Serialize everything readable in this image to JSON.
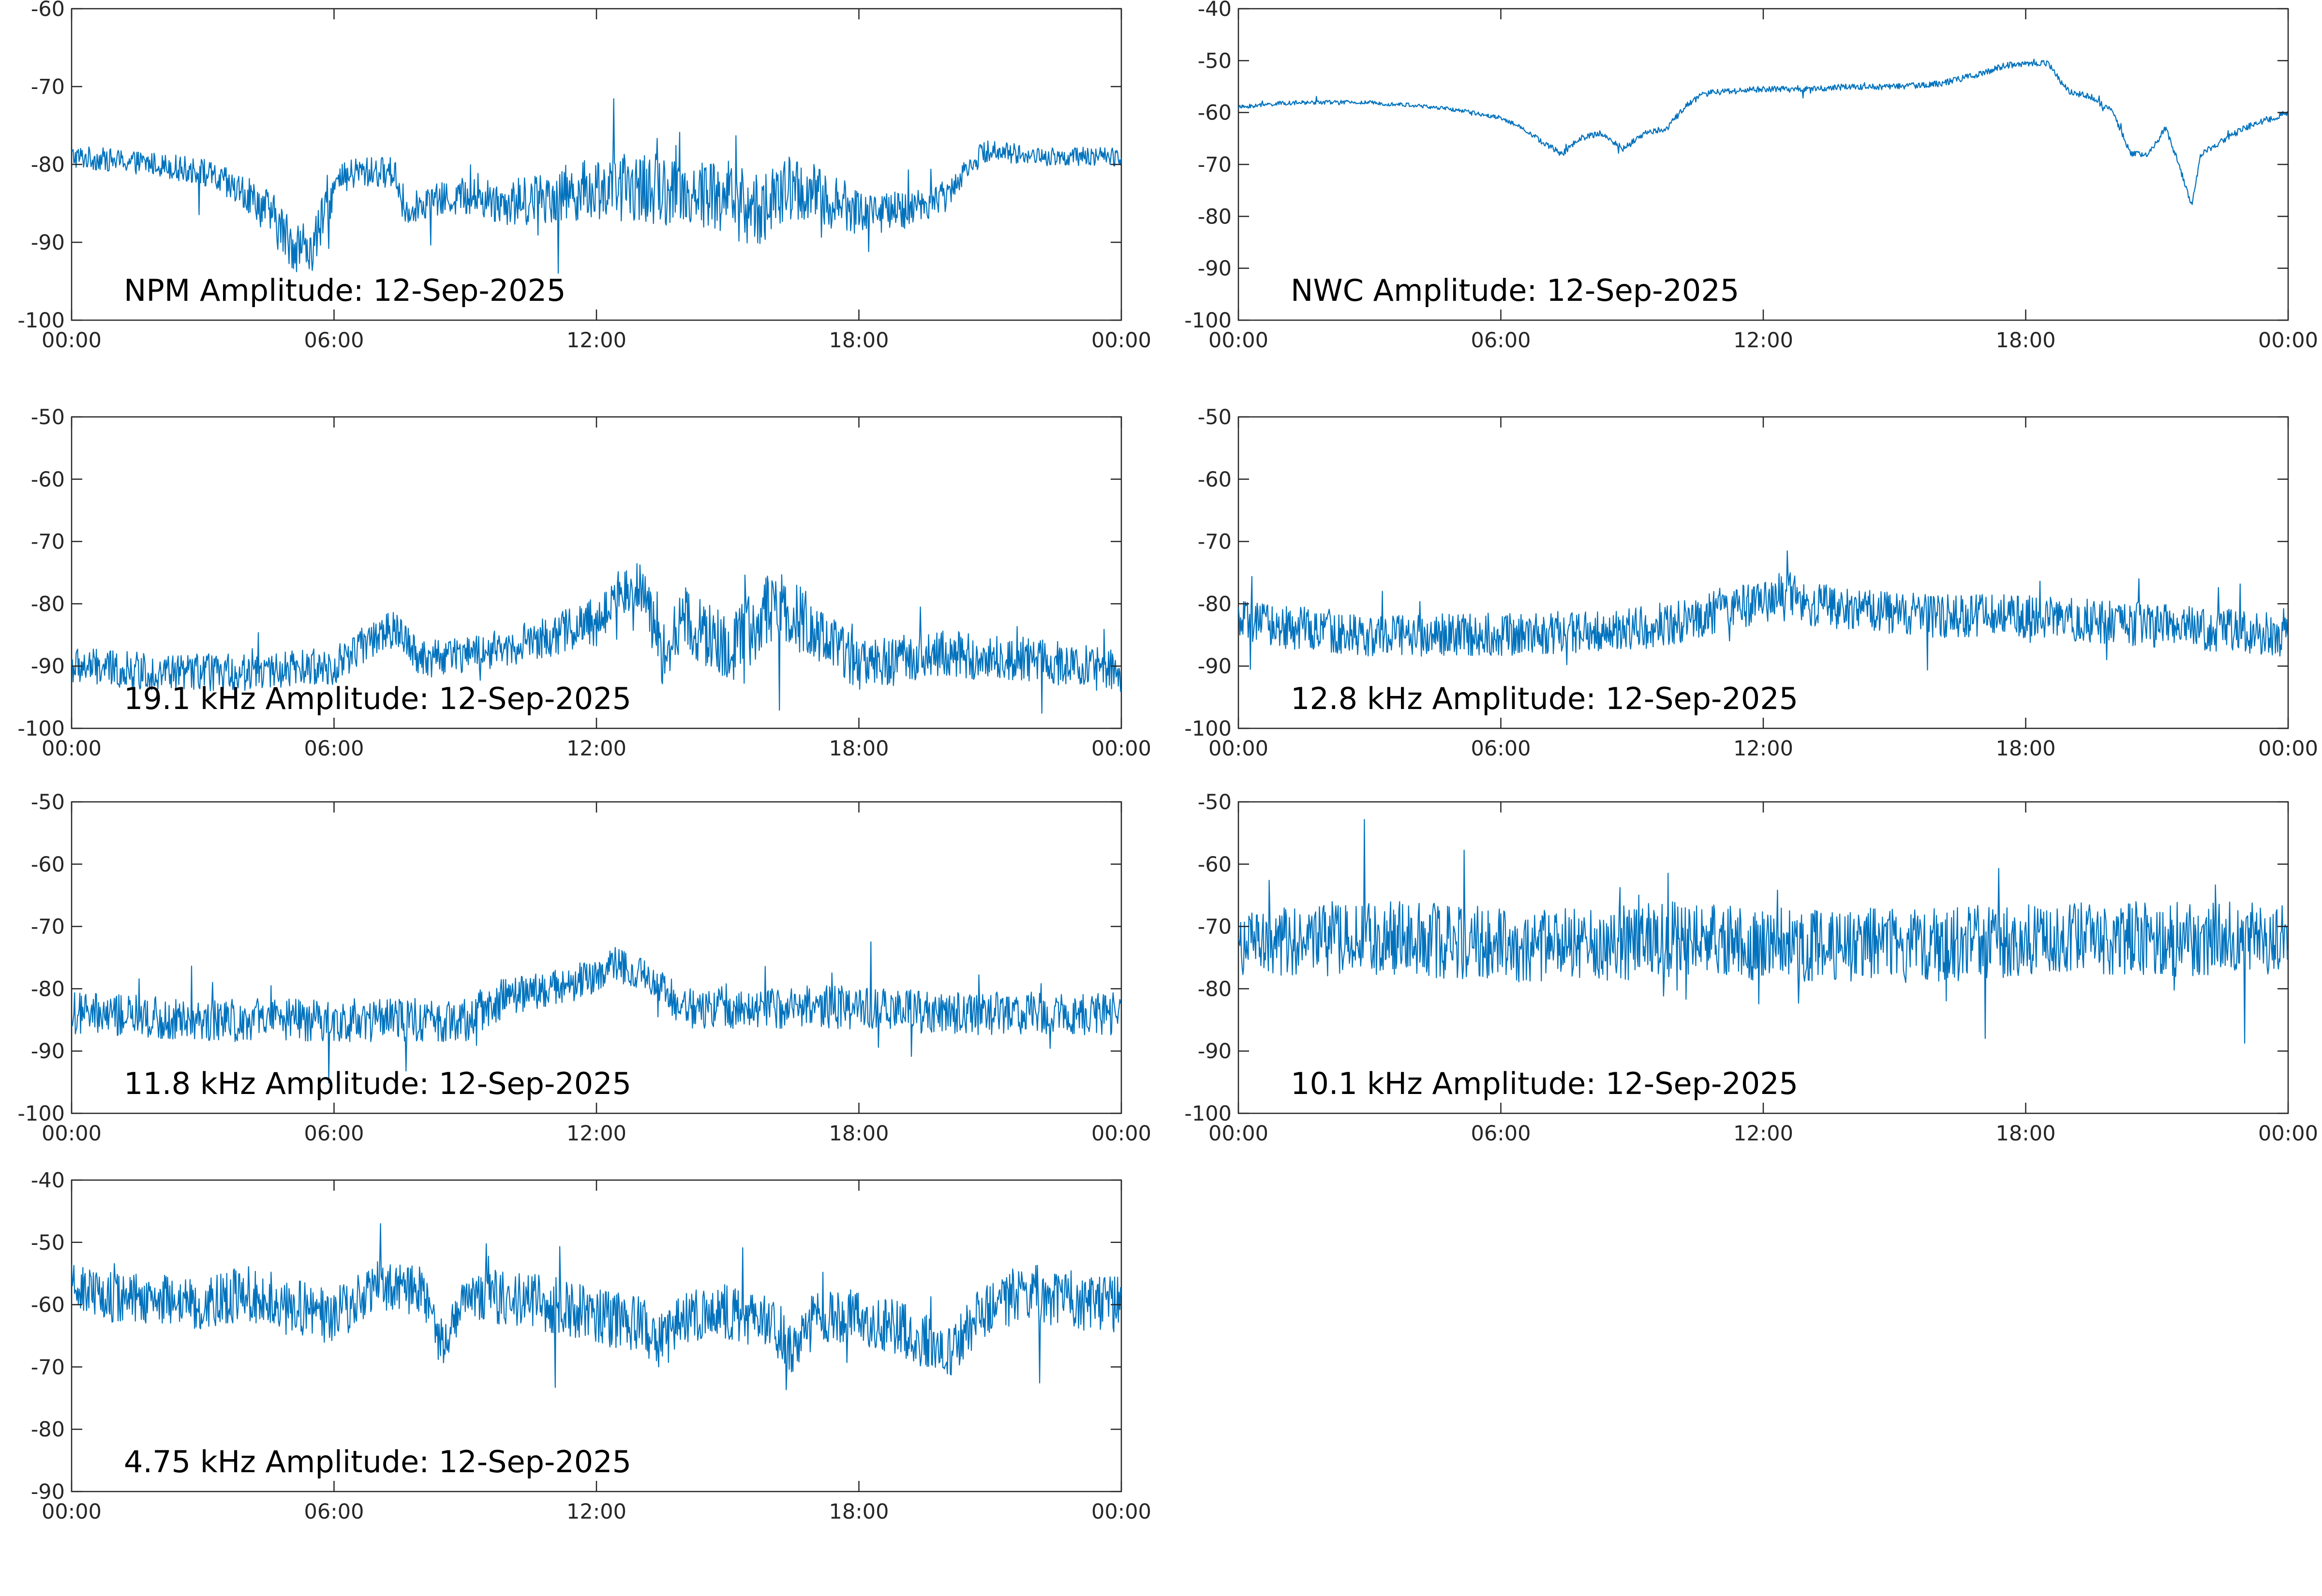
{
  "chart_data": [
    {
      "type": "line",
      "title": "NPM Amplitude: 12-Sep-2025",
      "xlabel": "",
      "ylabel": "",
      "x_ticks": [
        "00:00",
        "06:00",
        "12:00",
        "18:00",
        "00:00"
      ],
      "xlim_hours": [
        0,
        24
      ],
      "ylim": [
        -100,
        -60
      ],
      "y_ticks": [
        -60,
        -70,
        -80,
        -90,
        -100
      ],
      "color": "#0072bd",
      "series": [
        {
          "x_hours": [
            0,
            1,
            2,
            3,
            4,
            4.5,
            5,
            5.5,
            6,
            6.5,
            7,
            7.4,
            7.6,
            8,
            9,
            10,
            11,
            12,
            13,
            14,
            15,
            15.5,
            16,
            16.5,
            17,
            18,
            19,
            20,
            20.5,
            21,
            22,
            23,
            24
          ],
          "values": [
            -79,
            -79.5,
            -80,
            -81,
            -84,
            -86,
            -90,
            -91,
            -83,
            -81,
            -81,
            -81,
            -86,
            -85,
            -84,
            -85,
            -84,
            -83,
            -83,
            -83.5,
            -84,
            -86,
            -85,
            -83,
            -84,
            -86,
            -86,
            -84,
            -80,
            -78,
            -79,
            -79,
            -79
          ],
          "noise": [
            1.5,
            1.5,
            1.5,
            1.8,
            2.5,
            3,
            3.5,
            3.5,
            2.5,
            2,
            2,
            2,
            2,
            2,
            2.5,
            3,
            3.5,
            4,
            4.5,
            4.5,
            5,
            5,
            4.5,
            4.5,
            4,
            3,
            2.5,
            2,
            1.5,
            1.5,
            1.2,
            1.2,
            1.2
          ]
        }
      ]
    },
    {
      "type": "line",
      "title": "NWC Amplitude: 12-Sep-2025",
      "xlabel": "",
      "ylabel": "",
      "x_ticks": [
        "00:00",
        "06:00",
        "12:00",
        "18:00",
        "00:00"
      ],
      "xlim_hours": [
        0,
        24
      ],
      "ylim": [
        -100,
        -40
      ],
      "y_ticks": [
        -40,
        -50,
        -60,
        -70,
        -80,
        -90,
        -100
      ],
      "color": "#0072bd",
      "series": [
        {
          "x_hours": [
            0,
            1,
            2,
            3,
            4,
            5,
            6,
            6.5,
            7,
            7.4,
            7.8,
            8.3,
            8.8,
            9.3,
            9.8,
            10.2,
            10.6,
            11,
            12,
            13,
            14,
            15,
            16,
            17,
            17.5,
            18,
            18.5,
            18.8,
            19,
            19.5,
            20,
            20.4,
            20.8,
            21.2,
            21.5,
            21.8,
            22,
            23,
            24
          ],
          "values": [
            -59,
            -58.2,
            -58,
            -58.1,
            -58.6,
            -59.5,
            -61,
            -63,
            -66,
            -68,
            -65,
            -64,
            -67,
            -64,
            -63,
            -59,
            -56.5,
            -56,
            -55.5,
            -55.5,
            -55,
            -55,
            -54.5,
            -52.5,
            -51,
            -50.5,
            -50.5,
            -54,
            -56,
            -57,
            -60,
            -68,
            -68,
            -63,
            -70,
            -78,
            -68,
            -63,
            -60
          ],
          "noise": [
            0.4,
            0.4,
            0.4,
            0.4,
            0.4,
            0.4,
            0.4,
            0.4,
            0.6,
            0.6,
            0.6,
            0.6,
            0.6,
            0.6,
            0.6,
            0.6,
            0.6,
            0.6,
            0.6,
            0.6,
            0.6,
            0.6,
            0.6,
            0.6,
            0.6,
            0.6,
            0.6,
            0.6,
            0.6,
            0.6,
            0.6,
            0.6,
            0.6,
            0.6,
            0.6,
            0.6,
            0.6,
            0.6,
            0.6
          ]
        }
      ]
    },
    {
      "type": "line",
      "title": "19.1 kHz Amplitude: 12-Sep-2025",
      "xlabel": "",
      "ylabel": "",
      "x_ticks": [
        "00:00",
        "06:00",
        "12:00",
        "18:00",
        "00:00"
      ],
      "xlim_hours": [
        0,
        24
      ],
      "ylim": [
        -100,
        -50
      ],
      "y_ticks": [
        -50,
        -60,
        -70,
        -80,
        -90,
        -100
      ],
      "color": "#0072bd",
      "series": [
        {
          "x_hours": [
            0,
            2,
            4,
            6,
            7,
            7.5,
            8,
            10,
            11,
            12,
            12.5,
            13,
            13.5,
            14,
            15,
            16,
            17,
            18,
            19,
            20,
            22,
            24
          ],
          "values": [
            -90,
            -91,
            -91,
            -90,
            -85,
            -84,
            -89,
            -87,
            -85,
            -83,
            -78,
            -77,
            -88,
            -82,
            -88,
            -80,
            -84,
            -90,
            -89,
            -88,
            -89,
            -91
          ],
          "noise": [
            3,
            3,
            3,
            3,
            3,
            3,
            3,
            3,
            3.5,
            4,
            4,
            4,
            5,
            5,
            6,
            6,
            5,
            4,
            4,
            4,
            3.5,
            3.5
          ]
        }
      ]
    },
    {
      "type": "line",
      "title": "12.8 kHz Amplitude: 12-Sep-2025",
      "xlabel": "",
      "ylabel": "",
      "x_ticks": [
        "00:00",
        "06:00",
        "12:00",
        "18:00",
        "00:00"
      ],
      "xlim_hours": [
        0,
        24
      ],
      "ylim": [
        -100,
        -50
      ],
      "y_ticks": [
        -50,
        -60,
        -70,
        -80,
        -90,
        -100
      ],
      "color": "#0072bd",
      "series": [
        {
          "x_hours": [
            0,
            3,
            6,
            9,
            10,
            11,
            12,
            12.5,
            13,
            14,
            16,
            18,
            20,
            22,
            24
          ],
          "values": [
            -83,
            -85,
            -85,
            -84,
            -83,
            -81,
            -80,
            -78,
            -80,
            -81,
            -82,
            -82,
            -83,
            -84,
            -85
          ],
          "noise": [
            3.5,
            3.5,
            3.5,
            3.5,
            3.5,
            3.5,
            3.5,
            3.5,
            3.5,
            3.5,
            3.5,
            3.5,
            3.5,
            3.5,
            3.5
          ]
        }
      ]
    },
    {
      "type": "line",
      "title": "11.8 kHz Amplitude: 12-Sep-2025",
      "xlabel": "",
      "ylabel": "",
      "x_ticks": [
        "00:00",
        "06:00",
        "12:00",
        "18:00",
        "00:00"
      ],
      "xlim_hours": [
        0,
        24
      ],
      "ylim": [
        -100,
        -50
      ],
      "y_ticks": [
        -50,
        -60,
        -70,
        -80,
        -90,
        -100
      ],
      "color": "#0072bd",
      "series": [
        {
          "x_hours": [
            0,
            3,
            6,
            9,
            9.5,
            10,
            11,
            12,
            12.5,
            13,
            13.5,
            14,
            16,
            18,
            20,
            22,
            24
          ],
          "values": [
            -84,
            -85,
            -85,
            -85,
            -83,
            -81,
            -80,
            -78,
            -76,
            -78,
            -80,
            -83,
            -83,
            -83,
            -84,
            -84,
            -84
          ],
          "noise": [
            3.5,
            3.5,
            3.5,
            3.5,
            3.5,
            3,
            3,
            3,
            3,
            3,
            3,
            3.5,
            3.5,
            3.5,
            3.5,
            3.5,
            3.5
          ]
        }
      ]
    },
    {
      "type": "line",
      "title": "10.1 kHz Amplitude: 12-Sep-2025",
      "xlabel": "",
      "ylabel": "",
      "x_ticks": [
        "00:00",
        "06:00",
        "12:00",
        "18:00",
        "00:00"
      ],
      "xlim_hours": [
        0,
        24
      ],
      "ylim": [
        -100,
        -50
      ],
      "y_ticks": [
        -50,
        -60,
        -70,
        -80,
        -90,
        -100
      ],
      "color": "#0072bd",
      "series": [
        {
          "x_hours": [
            0,
            2,
            4,
            6,
            8,
            10,
            12,
            14,
            16,
            18,
            20,
            22,
            24
          ],
          "values": [
            -73,
            -72,
            -72,
            -73,
            -73,
            -72,
            -73,
            -73,
            -73,
            -72,
            -72,
            -72,
            -72
          ],
          "noise": [
            5,
            6,
            6,
            6,
            6,
            6,
            6,
            6,
            6,
            6,
            6,
            6,
            6
          ]
        }
      ]
    },
    {
      "type": "line",
      "title": "4.75 kHz Amplitude: 12-Sep-2025",
      "xlabel": "",
      "ylabel": "",
      "x_ticks": [
        "00:00",
        "06:00",
        "12:00",
        "18:00",
        "00:00"
      ],
      "xlim_hours": [
        0,
        24
      ],
      "ylim": [
        -90,
        -40
      ],
      "y_ticks": [
        -40,
        -50,
        -60,
        -70,
        -80,
        -90
      ],
      "color": "#0072bd",
      "series": [
        {
          "x_hours": [
            0,
            1,
            2,
            3,
            4,
            5,
            6,
            7,
            8,
            8.5,
            9,
            10,
            11,
            12,
            13,
            13.5,
            14,
            15,
            16,
            16.5,
            17,
            18,
            19,
            19.5,
            20,
            21,
            22,
            23,
            24
          ],
          "values": [
            -57,
            -59,
            -59,
            -60,
            -58,
            -60,
            -62,
            -57,
            -58,
            -67,
            -58,
            -59,
            -60,
            -62,
            -63,
            -66,
            -62,
            -61,
            -63,
            -67,
            -62,
            -62,
            -64,
            -66,
            -68,
            -60,
            -58,
            -60,
            -60
          ],
          "noise": [
            3.5,
            4,
            4,
            4,
            4.5,
            4.5,
            4.5,
            4,
            4,
            4,
            4,
            4.5,
            4.5,
            4.5,
            4.5,
            4.5,
            4.5,
            4.5,
            4.5,
            4.5,
            4.5,
            4.5,
            4.5,
            4.5,
            4.5,
            4.5,
            4.5,
            4.5,
            4.5
          ]
        }
      ]
    }
  ]
}
